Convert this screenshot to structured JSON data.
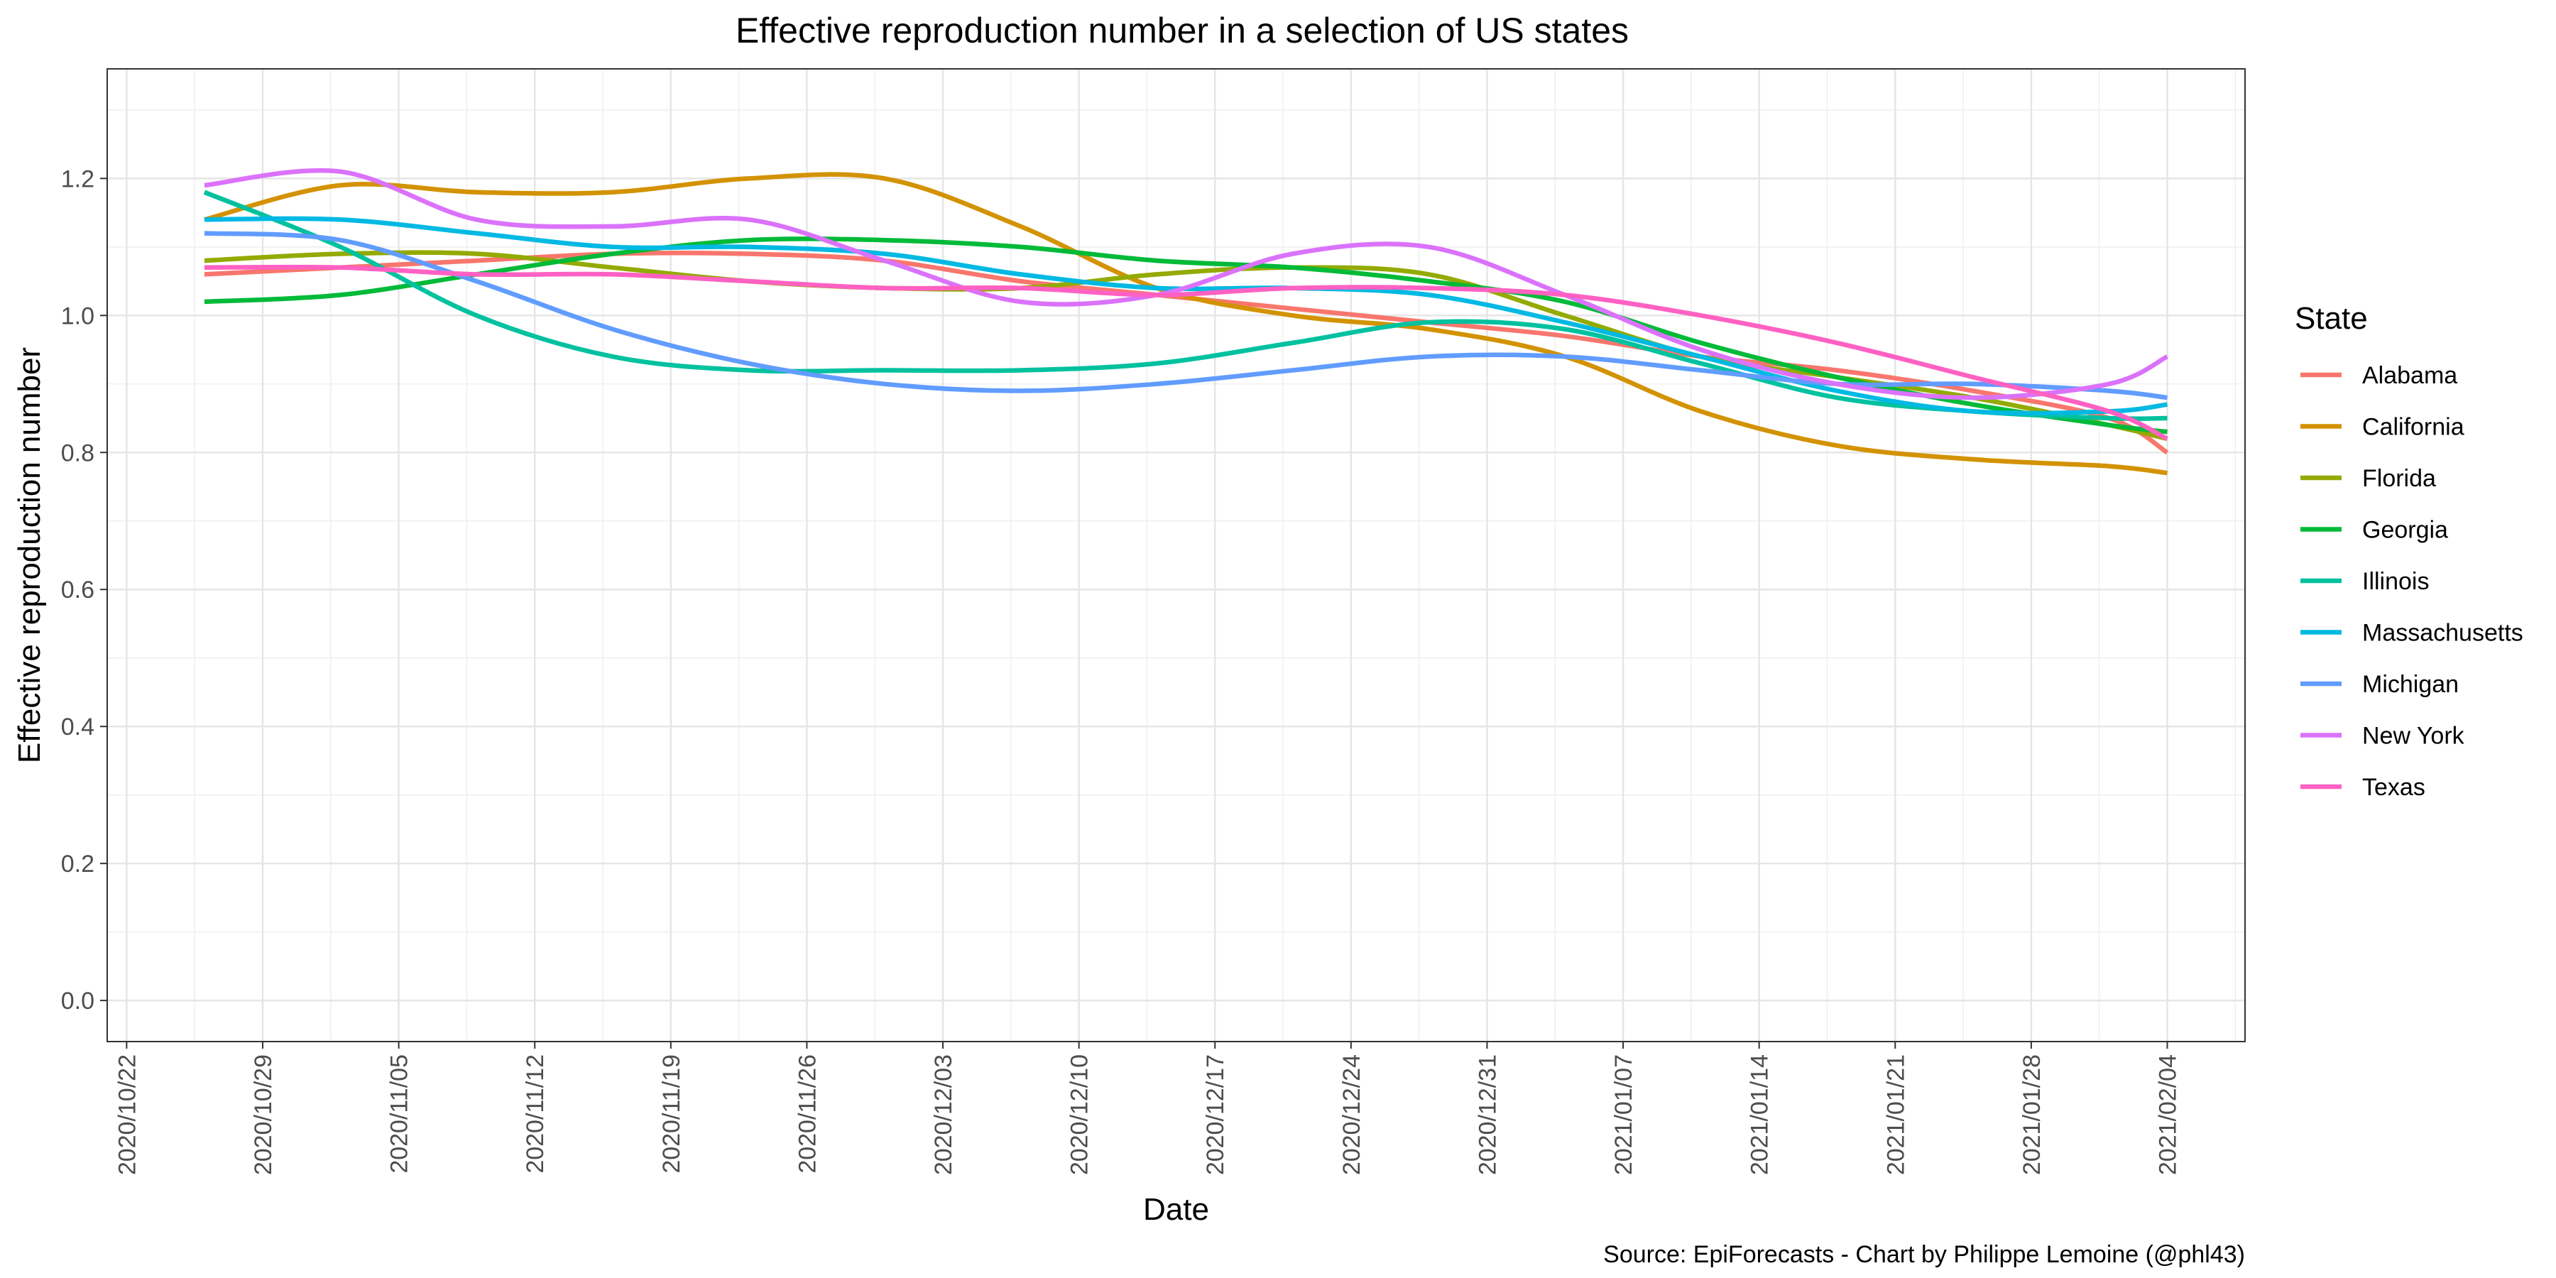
{
  "chart_data": {
    "type": "line",
    "title": "Effective reproduction number in a selection of US states",
    "xlabel": "Date",
    "ylabel": "Effective reproduction number",
    "caption": "Source: EpiForecasts - Chart by Philippe Lemoine (@phl43)",
    "legend_title": "State",
    "legend_position": "right",
    "grid": true,
    "x_ticks": [
      "2020/10/22",
      "2020/10/29",
      "2020/11/05",
      "2020/11/12",
      "2020/11/19",
      "2020/11/26",
      "2020/12/03",
      "2020/12/10",
      "2020/12/17",
      "2020/12/24",
      "2020/12/31",
      "2021/01/07",
      "2021/01/14",
      "2021/01/21",
      "2021/01/28",
      "2021/02/04"
    ],
    "y_ticks": [
      "0.0",
      "0.2",
      "0.4",
      "0.6",
      "0.8",
      "1.0",
      "1.2"
    ],
    "xlim": [
      "2020/10/21",
      "2021/02/08"
    ],
    "ylim": [
      -0.06,
      1.36
    ],
    "x": [
      "2020/10/26",
      "2020/11/02",
      "2020/11/09",
      "2020/11/16",
      "2020/11/23",
      "2020/11/30",
      "2020/12/07",
      "2020/12/14",
      "2020/12/21",
      "2020/12/28",
      "2021/01/04",
      "2021/01/11",
      "2021/01/18",
      "2021/01/25",
      "2021/02/01",
      "2021/02/04"
    ],
    "series": [
      {
        "name": "Alabama",
        "color": "#F8766D",
        "values": [
          1.06,
          1.07,
          1.08,
          1.09,
          1.09,
          1.08,
          1.05,
          1.03,
          1.01,
          0.99,
          0.97,
          0.94,
          0.92,
          0.89,
          0.85,
          0.8
        ]
      },
      {
        "name": "California",
        "color": "#D39200",
        "values": [
          1.14,
          1.19,
          1.18,
          1.18,
          1.2,
          1.2,
          1.13,
          1.04,
          1.0,
          0.98,
          0.94,
          0.86,
          0.81,
          0.79,
          0.78,
          0.77
        ]
      },
      {
        "name": "Florida",
        "color": "#93AA00",
        "values": [
          1.08,
          1.09,
          1.09,
          1.07,
          1.05,
          1.04,
          1.04,
          1.06,
          1.07,
          1.06,
          1.0,
          0.94,
          0.91,
          0.88,
          0.84,
          0.82
        ]
      },
      {
        "name": "Georgia",
        "color": "#00BA38",
        "values": [
          1.02,
          1.03,
          1.06,
          1.09,
          1.11,
          1.11,
          1.1,
          1.08,
          1.07,
          1.05,
          1.02,
          0.96,
          0.91,
          0.87,
          0.84,
          0.83
        ]
      },
      {
        "name": "Illinois",
        "color": "#00C19F",
        "values": [
          1.18,
          1.1,
          1.0,
          0.94,
          0.92,
          0.92,
          0.92,
          0.93,
          0.96,
          0.99,
          0.98,
          0.93,
          0.88,
          0.86,
          0.85,
          0.85
        ]
      },
      {
        "name": "Massachusetts",
        "color": "#00B9E3",
        "values": [
          1.14,
          1.14,
          1.12,
          1.1,
          1.1,
          1.09,
          1.06,
          1.04,
          1.04,
          1.03,
          0.99,
          0.94,
          0.89,
          0.86,
          0.86,
          0.87
        ]
      },
      {
        "name": "Michigan",
        "color": "#619CFF",
        "values": [
          1.12,
          1.11,
          1.05,
          0.98,
          0.93,
          0.9,
          0.89,
          0.9,
          0.92,
          0.94,
          0.94,
          0.92,
          0.9,
          0.9,
          0.89,
          0.88
        ]
      },
      {
        "name": "New York",
        "color": "#DB72FB",
        "values": [
          1.19,
          1.21,
          1.14,
          1.13,
          1.14,
          1.08,
          1.02,
          1.03,
          1.09,
          1.1,
          1.03,
          0.95,
          0.9,
          0.88,
          0.9,
          0.94
        ]
      },
      {
        "name": "Texas",
        "color": "#FF61C3",
        "values": [
          1.07,
          1.07,
          1.06,
          1.06,
          1.05,
          1.04,
          1.04,
          1.03,
          1.04,
          1.04,
          1.03,
          1.0,
          0.96,
          0.91,
          0.86,
          0.82
        ]
      }
    ]
  }
}
